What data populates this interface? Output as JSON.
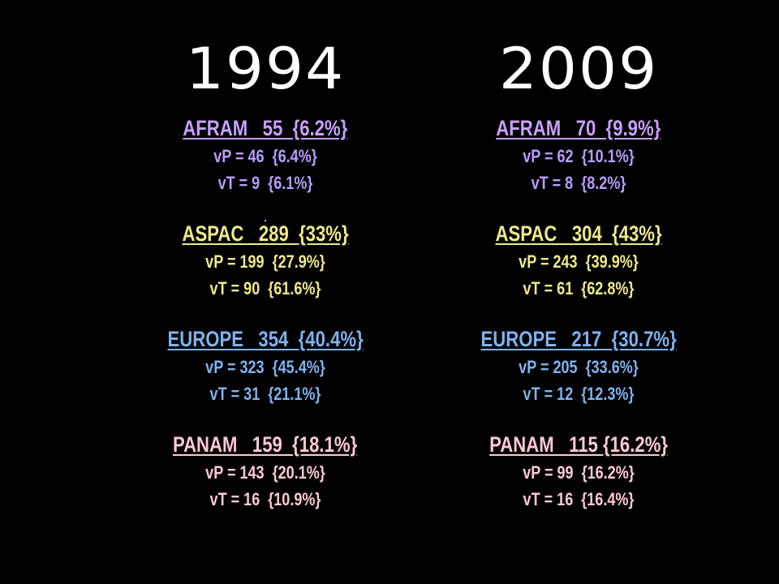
{
  "colors": {
    "background": "#000000",
    "year": "#ffffff",
    "afram": "#c8a0ff",
    "aspac": "#f0e98a",
    "europe": "#7fb2ee",
    "panam": "#ffc8d6"
  },
  "left": {
    "year": "1994",
    "afram": {
      "title": "AFRAM   55  {6.2%}",
      "vp": "vP = 46  {6.4%}",
      "vt": "vT = 9  {6.1%}"
    },
    "aspac": {
      "title": "ASPAC   289  {33%}",
      "vp": "vP = 199  {27.9%}",
      "vt": "vT = 90  {61.6%}"
    },
    "europe": {
      "title": "EUROPE   354  {40.4%}",
      "vp": "vP = 323  {45.4%}",
      "vt": "vT = 31  {21.1%}"
    },
    "panam": {
      "title": "PANAM   159  {18.1%}",
      "vp": "vP = 143  {20.1%}",
      "vt": "vT = 16  {10.9%}"
    }
  },
  "right": {
    "year": "2009",
    "afram": {
      "title": "AFRAM   70  {9.9%}",
      "vp": "vP = 62  {10.1%}",
      "vt": "vT = 8  {8.2%}"
    },
    "aspac": {
      "title": "ASPAC   304  {43%}",
      "vp": "vP = 243  {39.9%}",
      "vt": "vT = 61  {62.8%}"
    },
    "europe": {
      "title": "EUROPE   217  {30.7%}",
      "vp": "vP = 205  {33.6%}",
      "vt": "vT = 12  {12.3%}"
    },
    "panam": {
      "title": "PANAM   115 {16.2%}",
      "vp": "vP = 99  {16.2%}",
      "vt": "vT = 16  {16.4%}"
    }
  }
}
